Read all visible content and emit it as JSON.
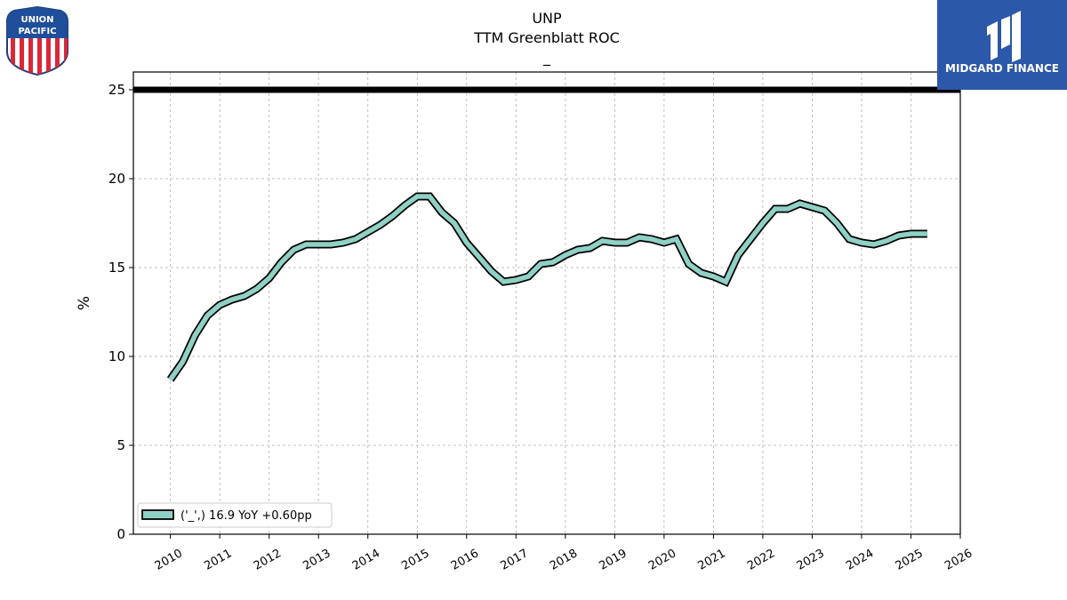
{
  "logos": {
    "left_brand": {
      "line1": "UNION",
      "line2": "PACIFIC"
    },
    "right_brand": {
      "name": "MIDGARD FINANCE",
      "color": "#2b58a8"
    }
  },
  "chart_data": {
    "type": "line",
    "title": "UNP",
    "subtitle": "TTM Greenblatt ROC",
    "subtitle2": "_",
    "ylabel": "%",
    "xlabel": "",
    "xlim": [
      2009.25,
      2026
    ],
    "ylim": [
      0,
      26
    ],
    "y_ticks": [
      "0",
      "5",
      "10",
      "15",
      "20",
      "25"
    ],
    "y_tick_values": [
      0,
      5,
      10,
      15,
      20,
      25
    ],
    "x_ticks": [
      "2010",
      "2011",
      "2012",
      "2013",
      "2014",
      "2015",
      "2016",
      "2017",
      "2018",
      "2019",
      "2020",
      "2021",
      "2022",
      "2023",
      "2024",
      "2025",
      "2026"
    ],
    "x_tick_values": [
      2010,
      2011,
      2012,
      2013,
      2014,
      2015,
      2016,
      2017,
      2018,
      2019,
      2020,
      2021,
      2022,
      2023,
      2024,
      2025,
      2026
    ],
    "grid": true,
    "legend_position": "bottom-left",
    "reference_line": {
      "y": 25,
      "color": "#000000"
    },
    "series": [
      {
        "name": "('_',) 16.9 YoY +0.60pp",
        "color": "#8fd1c4",
        "x": [
          2010.0,
          2010.25,
          2010.5,
          2010.75,
          2011.0,
          2011.25,
          2011.5,
          2011.75,
          2012.0,
          2012.25,
          2012.5,
          2012.75,
          2013.0,
          2013.25,
          2013.5,
          2013.75,
          2014.0,
          2014.25,
          2014.5,
          2014.75,
          2015.0,
          2015.25,
          2015.5,
          2015.75,
          2016.0,
          2016.25,
          2016.5,
          2016.75,
          2017.0,
          2017.25,
          2017.5,
          2017.75,
          2018.0,
          2018.25,
          2018.5,
          2018.75,
          2019.0,
          2019.25,
          2019.5,
          2019.75,
          2020.0,
          2020.25,
          2020.5,
          2020.75,
          2021.0,
          2021.25,
          2021.5,
          2021.75,
          2022.0,
          2022.25,
          2022.5,
          2022.75,
          2023.0,
          2023.25,
          2023.5,
          2023.75,
          2024.0,
          2024.25,
          2024.5,
          2024.75,
          2025.0,
          2025.33
        ],
        "values": [
          8.7,
          9.7,
          11.2,
          12.3,
          12.9,
          13.2,
          13.4,
          13.8,
          14.4,
          15.3,
          16.0,
          16.3,
          16.3,
          16.3,
          16.4,
          16.6,
          17.0,
          17.4,
          17.9,
          18.5,
          19.0,
          19.0,
          18.1,
          17.5,
          16.4,
          15.6,
          14.8,
          14.2,
          14.3,
          14.5,
          15.2,
          15.3,
          15.7,
          16.0,
          16.1,
          16.5,
          16.4,
          16.4,
          16.7,
          16.6,
          16.4,
          16.6,
          15.2,
          14.7,
          14.5,
          14.2,
          15.7,
          16.6,
          17.5,
          18.3,
          18.3,
          18.6,
          18.4,
          18.2,
          17.5,
          16.6,
          16.4,
          16.3,
          16.5,
          16.8,
          16.9,
          16.9
        ]
      }
    ]
  }
}
